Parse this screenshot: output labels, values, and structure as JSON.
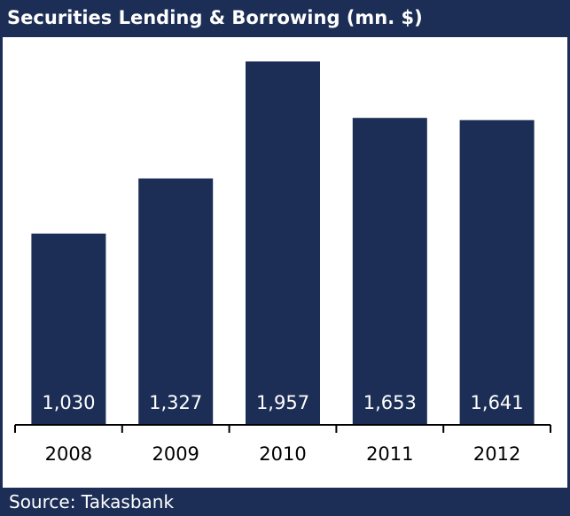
{
  "header": {
    "title": "Securities Lending & Borrowing (mn. $)"
  },
  "footer": {
    "source": "Source: Takasbank"
  },
  "colors": {
    "bar": "#1c2e55",
    "frame": "#1c2e55",
    "bar_label": "#ffffff",
    "axis": "#000000"
  },
  "chart_data": {
    "type": "bar",
    "title": "Securities Lending & Borrowing (mn. $)",
    "categories": [
      "2008",
      "2009",
      "2010",
      "2011",
      "2012"
    ],
    "values": [
      1030,
      1327,
      1957,
      1653,
      1641
    ],
    "data_labels": [
      "1,030",
      "1,327",
      "1,957",
      "1,653",
      "1,641"
    ],
    "xlabel": "",
    "ylabel": "",
    "ylim": [
      0,
      2000
    ],
    "grid": false,
    "legend": "none"
  }
}
